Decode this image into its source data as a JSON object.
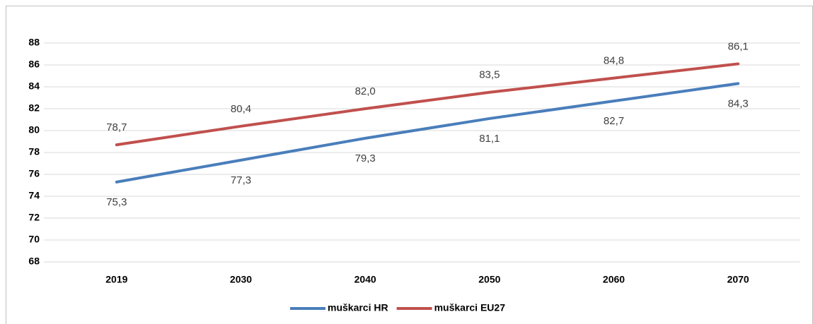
{
  "chart_data": {
    "type": "line",
    "categories": [
      "2019",
      "2030",
      "2040",
      "2050",
      "2060",
      "2070"
    ],
    "series": [
      {
        "name": "muškarci HR",
        "color": "#4a7ebb",
        "values": [
          75.3,
          77.3,
          79.3,
          81.1,
          82.7,
          84.3
        ],
        "value_labels": [
          "75,3",
          "77,3",
          "79,3",
          "81,1",
          "82,7",
          "84,3"
        ]
      },
      {
        "name": "muškarci EU27",
        "color": "#c0504d",
        "values": [
          78.7,
          80.4,
          82.0,
          83.5,
          84.8,
          86.1
        ],
        "value_labels": [
          "78,7",
          "80,4",
          "82,0",
          "83,5",
          "84,8",
          "86,1"
        ]
      }
    ],
    "ylim": [
      68,
      88
    ],
    "yticks": [
      68,
      70,
      72,
      74,
      76,
      78,
      80,
      82,
      84,
      86,
      88
    ],
    "grid": true,
    "legend": "bottom"
  }
}
